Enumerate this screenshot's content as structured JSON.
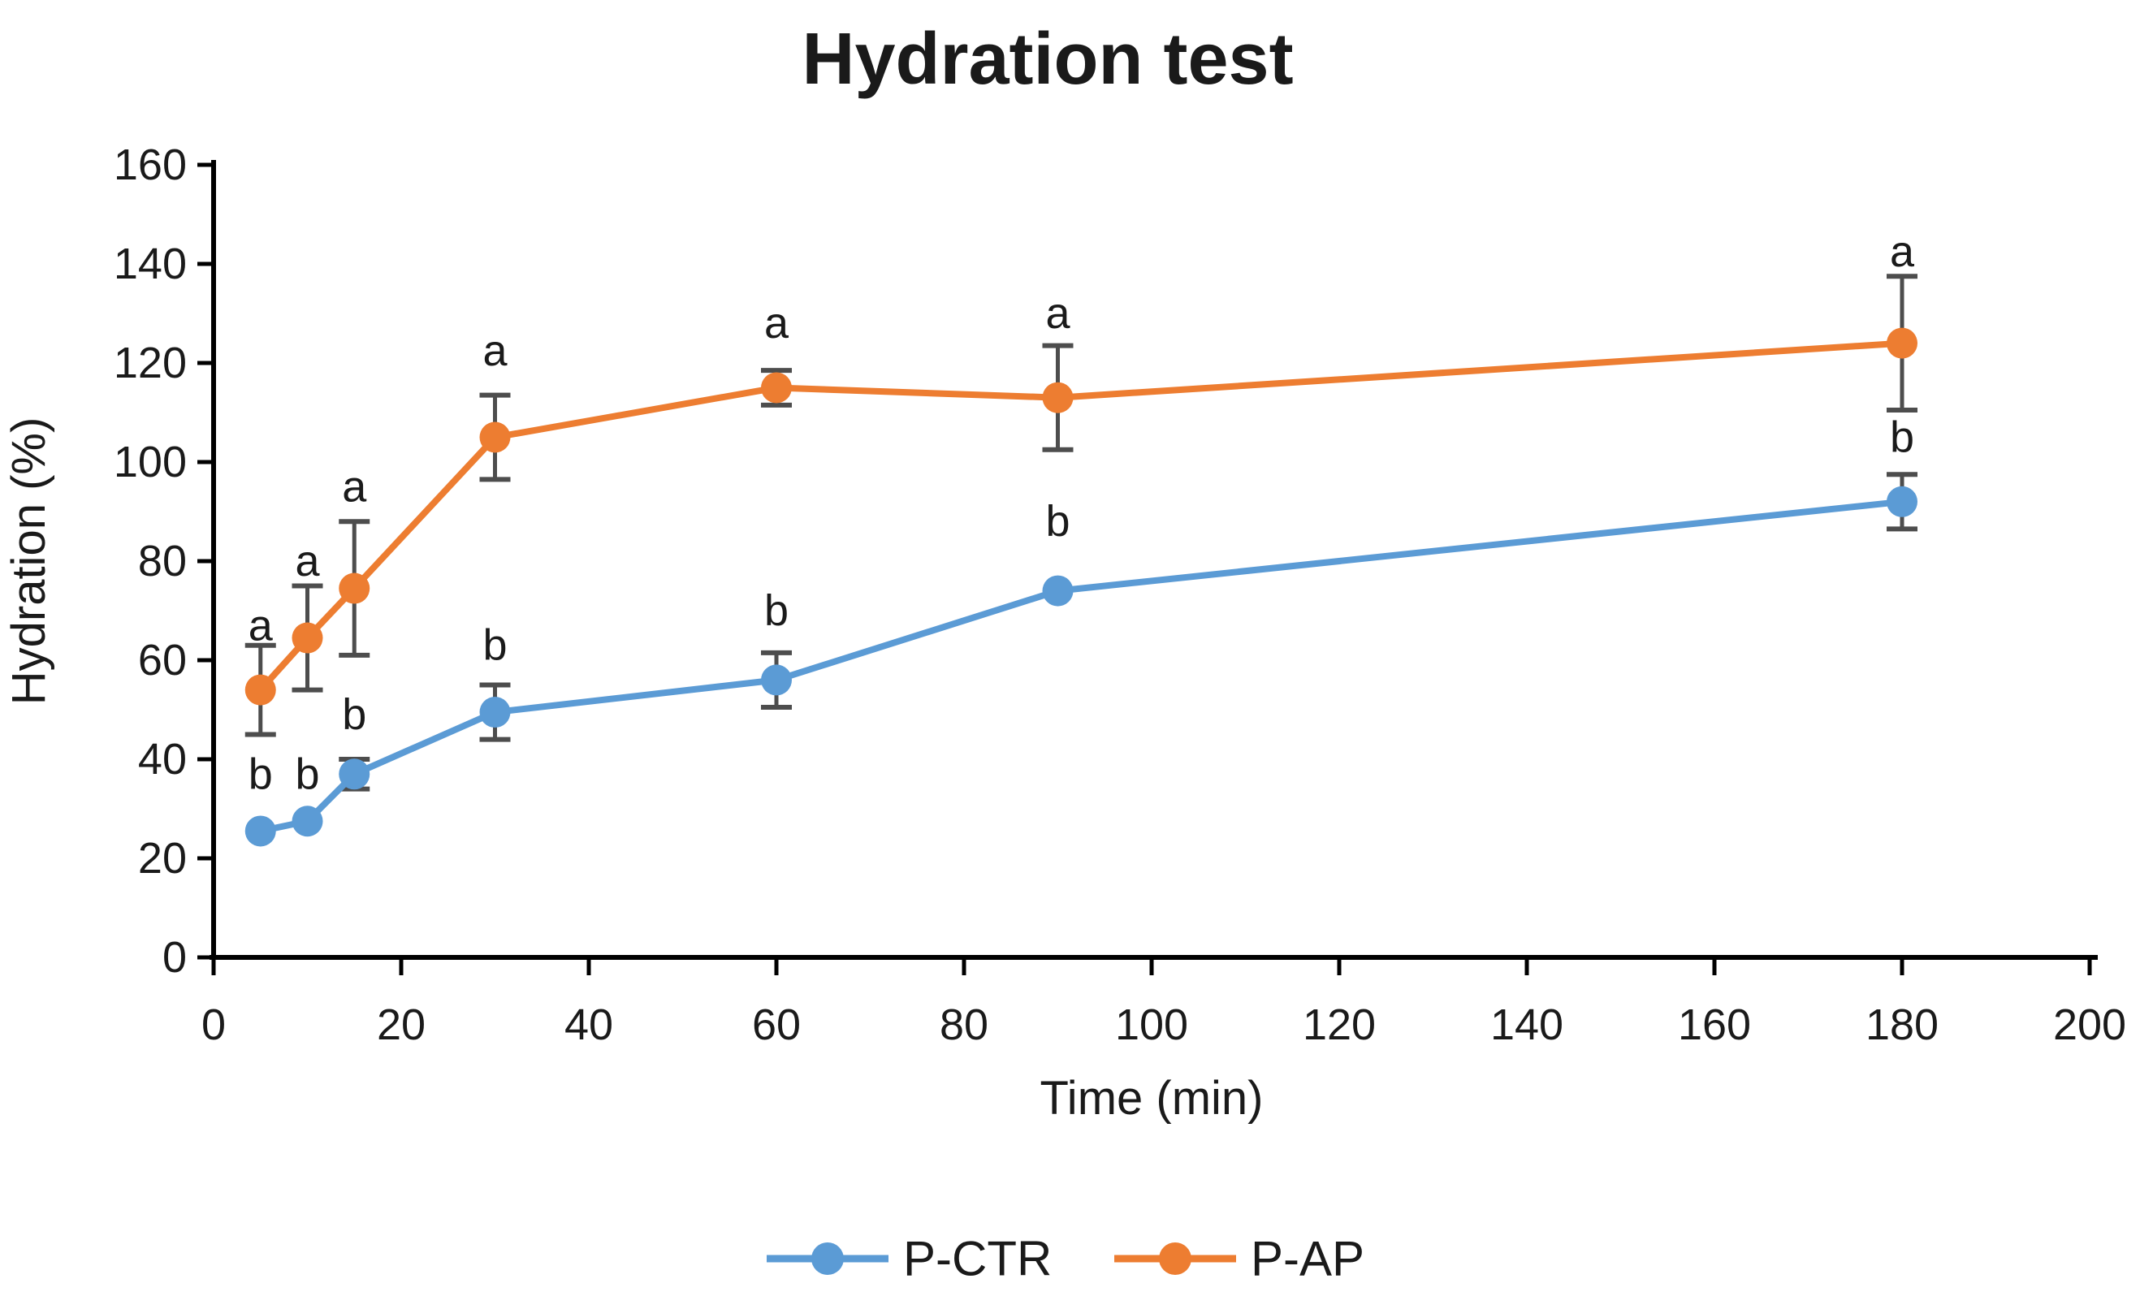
{
  "chart_data": {
    "type": "line",
    "title": "Hydration test",
    "xlabel": "Time (min)",
    "ylabel": "Hydration (%)",
    "xlim": [
      0,
      200
    ],
    "ylim": [
      0,
      160
    ],
    "x_ticks": [
      0,
      20,
      40,
      60,
      80,
      100,
      120,
      140,
      160,
      180,
      200
    ],
    "y_ticks": [
      0,
      20,
      40,
      60,
      80,
      100,
      120,
      140,
      160
    ],
    "grid": false,
    "legend_position": "bottom-center",
    "x": [
      5,
      10,
      15,
      30,
      60,
      90,
      180
    ],
    "series": [
      {
        "name": "P-CTR",
        "color": "#5B9BD5",
        "values": [
          25.5,
          27.5,
          37,
          49.5,
          56,
          74,
          92
        ],
        "errors": [
          0,
          0,
          3,
          5.5,
          5.5,
          0,
          5.5
        ],
        "point_labels": [
          "b",
          "b",
          "b",
          "b",
          "b",
          "b",
          "b"
        ],
        "label_y": [
          37,
          37,
          49,
          63,
          70,
          88,
          105
        ]
      },
      {
        "name": "P-AP",
        "color": "#ED7D31",
        "values": [
          54,
          64.5,
          74.5,
          105,
          115,
          113,
          124
        ],
        "errors": [
          9,
          10.5,
          13.5,
          8.5,
          3.5,
          10.5,
          13.5
        ],
        "point_labels": [
          "a",
          "a",
          "a",
          "a",
          "a",
          "a",
          "a"
        ],
        "label_y": [
          67,
          80,
          95,
          122.5,
          128,
          130,
          142.5
        ]
      }
    ],
    "error_bar_color": "#4d4d4d",
    "axis_color": "#000000",
    "text_color": "#1a1a1a"
  }
}
